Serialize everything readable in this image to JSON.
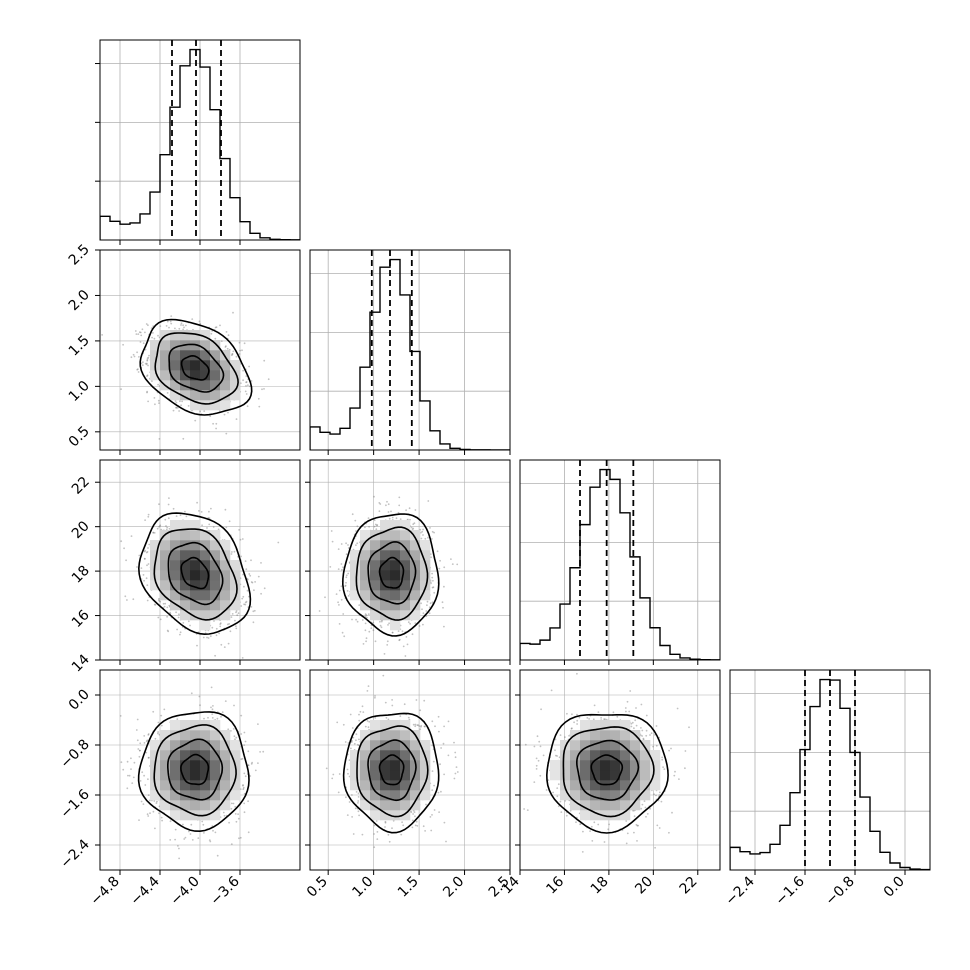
{
  "chart_data": {
    "type": "corner",
    "grid": true,
    "parameters": [
      {
        "mean": -4.05,
        "sd": 0.23,
        "q16": -4.28,
        "q50": -4.04,
        "q84": -3.79,
        "range": [
          -5.0,
          -3.0
        ],
        "ticks": [
          -4.8,
          -4.4,
          -4.0,
          -3.6
        ],
        "tick_labels": [
          "−4.8",
          "−4.4",
          "−4.0",
          "−3.6"
        ]
      },
      {
        "mean": 1.2,
        "sd": 0.22,
        "q16": 0.98,
        "q50": 1.18,
        "q84": 1.42,
        "range": [
          0.3,
          2.5
        ],
        "ticks": [
          0.5,
          1.0,
          1.5,
          2.0,
          2.5
        ],
        "tick_labels": [
          "0.5",
          "1.0",
          "1.5",
          "2.0",
          "2.5"
        ]
      },
      {
        "mean": 17.9,
        "sd": 1.15,
        "q16": 16.7,
        "q50": 17.9,
        "q84": 19.1,
        "range": [
          14.0,
          23.0
        ],
        "ticks": [
          14,
          16,
          18,
          20,
          22
        ],
        "tick_labels": [
          "14",
          "16",
          "18",
          "20",
          "22"
        ]
      },
      {
        "mean": -1.2,
        "sd": 0.4,
        "q16": -1.6,
        "q50": -1.2,
        "q84": -0.8,
        "range": [
          -2.8,
          0.4
        ],
        "ticks": [
          -2.4,
          -1.6,
          -0.8,
          0.0
        ],
        "tick_labels": [
          "−2.4",
          "−1.6",
          "−0.8",
          "0.0"
        ]
      }
    ],
    "correlations": [
      [
        0,
        1,
        -0.3
      ],
      [
        0,
        2,
        -0.25
      ],
      [
        0,
        3,
        0.0
      ],
      [
        1,
        2,
        0.0
      ],
      [
        1,
        3,
        0.0
      ],
      [
        2,
        3,
        0.0
      ]
    ],
    "quantile_lines": [
      0.16,
      0.5,
      0.84
    ],
    "contour_levels_sigma": [
      0.5,
      1.0,
      1.5,
      2.0
    ],
    "histogram_bins": 20,
    "colors": {
      "line": "#000000",
      "grid": "#b0b0b0",
      "points": "#777777"
    }
  }
}
